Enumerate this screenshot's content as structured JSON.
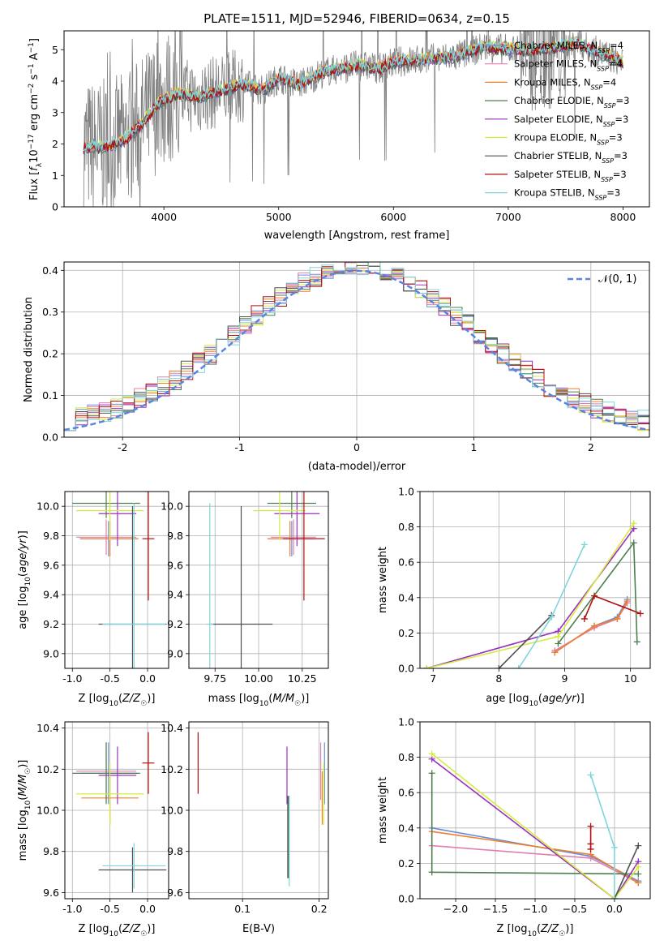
{
  "figure": {
    "title": "PLATE=1511, MJD=52946, FIBERID=0634, z=0.15"
  },
  "model_colors": {
    "Chabrier MILES": "#6a8fd6",
    "Salpeter MILES": "#e07fb0",
    "Kroupa MILES": "#ee7f2d",
    "Chabrier ELODIE": "#4f7f4f",
    "Salpeter ELODIE": "#9b2fbf",
    "Kroupa ELODIE": "#d4ec3c",
    "Chabrier STELIB": "#505050",
    "Salpeter STELIB": "#b01010",
    "Kroupa STELIB": "#7fd4dc",
    "data_spectrum": "#808080",
    "gaussian_curve": "#5b84e0"
  },
  "chart_data": [
    {
      "id": "spectrum",
      "type": "line",
      "title": "PLATE=1511, MJD=52946, FIBERID=0634, z=0.15",
      "xlabel": "wavelength [Angstrom, rest frame]",
      "ylabel": "Flux [f_λ 10^-17 erg cm^-2 s^-1 A^-1]",
      "xlim": [
        3130,
        8230
      ],
      "ylim": [
        0,
        5.6
      ],
      "xticks": [
        4000,
        5000,
        6000,
        7000,
        8000
      ],
      "yticks": [
        0,
        1,
        2,
        3,
        4,
        5
      ],
      "grid": false,
      "legend_position": "top-right",
      "legend": [
        {
          "label": "Chabrier MILES",
          "nssp": "4"
        },
        {
          "label": "Salpeter MILES",
          "nssp": "4"
        },
        {
          "label": "Kroupa MILES",
          "nssp": "4"
        },
        {
          "label": "Chabrier ELODIE",
          "nssp": "3"
        },
        {
          "label": "Salpeter ELODIE",
          "nssp": "3"
        },
        {
          "label": "Kroupa ELODIE",
          "nssp": "3"
        },
        {
          "label": "Chabrier STELIB",
          "nssp": "3"
        },
        {
          "label": "Salpeter STELIB",
          "nssp": "3"
        },
        {
          "label": "Kroupa STELIB",
          "nssp": "3"
        }
      ],
      "continuum_points": [
        [
          3300,
          1.9
        ],
        [
          3500,
          1.9
        ],
        [
          3650,
          2.1
        ],
        [
          3800,
          2.6
        ],
        [
          3950,
          3.3
        ],
        [
          4100,
          3.6
        ],
        [
          4300,
          3.5
        ],
        [
          4500,
          3.7
        ],
        [
          4700,
          3.9
        ],
        [
          4862,
          3.7
        ],
        [
          5000,
          4.1
        ],
        [
          5175,
          3.9
        ],
        [
          5400,
          4.3
        ],
        [
          5700,
          4.5
        ],
        [
          5890,
          4.4
        ],
        [
          6000,
          4.6
        ],
        [
          6300,
          4.7
        ],
        [
          6563,
          4.8
        ],
        [
          6800,
          5.1
        ],
        [
          7000,
          5.0
        ],
        [
          7300,
          5.0
        ],
        [
          7600,
          5.2
        ],
        [
          8000,
          4.6
        ]
      ]
    },
    {
      "id": "residuals",
      "type": "line",
      "xlabel": "(data-model)/error",
      "ylabel": "Normed distribution",
      "xlim": [
        -2.5,
        2.5
      ],
      "ylim": [
        0,
        0.42
      ],
      "xticks": [
        -2,
        -1,
        0,
        1,
        2
      ],
      "yticks": [
        0.0,
        0.1,
        0.2,
        0.3,
        0.4
      ],
      "grid": true,
      "legend_position": "top-right",
      "legend_label": "𝒩(0, 1)",
      "gaussian": {
        "mean": 0,
        "sigma": 1
      }
    },
    {
      "id": "age-vs-Z",
      "type": "scatter",
      "xlabel": "Z [log10(Z/Z☉)]",
      "ylabel": "age [log10(age/yr)]",
      "xlim": [
        -1.1,
        0.28
      ],
      "ylim": [
        8.9,
        10.1
      ],
      "xticks": [
        -1.0,
        -0.5,
        0.0
      ],
      "yticks": [
        9.0,
        9.2,
        9.4,
        9.6,
        9.8,
        10.0
      ],
      "grid": true,
      "points": [
        {
          "model": "Chabrier MILES",
          "x": -0.52,
          "xerr": 0.38,
          "y": 9.78,
          "yerr": 0.12
        },
        {
          "model": "Salpeter MILES",
          "x": -0.55,
          "xerr": 0.4,
          "y": 9.79,
          "yerr": 0.12
        },
        {
          "model": "Kroupa MILES",
          "x": -0.5,
          "xerr": 0.38,
          "y": 9.78,
          "yerr": 0.12
        },
        {
          "model": "Chabrier ELODIE",
          "x": -0.55,
          "xerr": 0.45,
          "y": 10.02,
          "yerr": 0.1
        },
        {
          "model": "Salpeter ELODIE",
          "x": -0.4,
          "xerr": 0.25,
          "y": 9.95,
          "yerr": 0.22
        },
        {
          "model": "Kroupa ELODIE",
          "x": -0.5,
          "xerr": 0.45,
          "y": 9.97,
          "yerr": 0.2
        },
        {
          "model": "Chabrier STELIB",
          "x": -0.2,
          "xerr": 0.45,
          "y": 9.2,
          "yerr": 0.8
        },
        {
          "model": "Salpeter STELIB",
          "x": 0.01,
          "xerr": 0.08,
          "y": 9.78,
          "yerr": 0.42
        },
        {
          "model": "Kroupa STELIB",
          "x": -0.18,
          "xerr": 0.42,
          "y": 9.2,
          "yerr": 0.82
        }
      ]
    },
    {
      "id": "age-vs-mass",
      "type": "scatter",
      "xlabel": "mass [log10(M/M☉)]",
      "ylabel": "",
      "xlim": [
        9.6,
        10.4
      ],
      "ylim": [
        8.9,
        10.1
      ],
      "xticks": [
        9.75,
        10.0,
        10.25
      ],
      "xticklabels": [
        "9.75",
        "10.00",
        "10.25"
      ],
      "yticks": [
        9.0,
        9.2,
        9.4,
        9.6,
        9.8,
        10.0
      ],
      "grid": true,
      "points": [
        {
          "model": "Chabrier MILES",
          "x": 10.19,
          "xerr": 0.13,
          "y": 9.78,
          "yerr": 0.12
        },
        {
          "model": "Salpeter MILES",
          "x": 10.2,
          "xerr": 0.13,
          "y": 9.79,
          "yerr": 0.12
        },
        {
          "model": "Kroupa MILES",
          "x": 10.18,
          "xerr": 0.13,
          "y": 9.78,
          "yerr": 0.12
        },
        {
          "model": "Chabrier ELODIE",
          "x": 10.19,
          "xerr": 0.14,
          "y": 10.02,
          "yerr": 0.1
        },
        {
          "model": "Salpeter ELODIE",
          "x": 10.22,
          "xerr": 0.13,
          "y": 9.95,
          "yerr": 0.22
        },
        {
          "model": "Kroupa ELODIE",
          "x": 10.12,
          "xerr": 0.15,
          "y": 9.97,
          "yerr": 0.2
        },
        {
          "model": "Chabrier STELIB",
          "x": 9.9,
          "xerr": 0.18,
          "y": 9.2,
          "yerr": 0.8
        },
        {
          "model": "Salpeter STELIB",
          "x": 10.26,
          "xerr": 0.12,
          "y": 9.78,
          "yerr": 0.42
        },
        {
          "model": "Kroupa STELIB",
          "x": 9.72,
          "xerr": 0.02,
          "y": 9.2,
          "yerr": 0.82
        }
      ]
    },
    {
      "id": "weight-vs-age",
      "type": "line",
      "xlabel": "age [log10(age/yr)]",
      "ylabel": "mass weight",
      "xlim": [
        6.8,
        10.3
      ],
      "ylim": [
        0,
        1.0
      ],
      "xticks": [
        7,
        8,
        9,
        10
      ],
      "yticks": [
        0.0,
        0.2,
        0.4,
        0.6,
        0.8,
        1.0
      ],
      "grid": true,
      "series": [
        {
          "model": "Chabrier MILES",
          "x": [
            8.85,
            9.45,
            9.8,
            9.95
          ],
          "y": [
            0.09,
            0.24,
            0.29,
            0.39
          ]
        },
        {
          "model": "Salpeter MILES",
          "x": [
            8.85,
            9.45,
            9.8,
            9.95
          ],
          "y": [
            0.1,
            0.23,
            0.28,
            0.37
          ]
        },
        {
          "model": "Kroupa MILES",
          "x": [
            8.85,
            9.45,
            9.8,
            9.95
          ],
          "y": [
            0.09,
            0.24,
            0.28,
            0.38
          ]
        },
        {
          "model": "Chabrier ELODIE",
          "x": [
            8.9,
            10.05,
            10.1
          ],
          "y": [
            0.14,
            0.71,
            0.15
          ]
        },
        {
          "model": "Salpeter ELODIE",
          "x": [
            6.9,
            8.9,
            10.05
          ],
          "y": [
            0.0,
            0.21,
            0.79
          ]
        },
        {
          "model": "Kroupa ELODIE",
          "x": [
            6.9,
            8.9,
            10.05
          ],
          "y": [
            0.0,
            0.18,
            0.82
          ]
        },
        {
          "model": "Chabrier STELIB",
          "x": [
            8.0,
            8.8
          ],
          "y": [
            0.0,
            0.3
          ]
        },
        {
          "model": "Salpeter STELIB",
          "x": [
            9.3,
            9.45,
            10.15
          ],
          "y": [
            0.28,
            0.41,
            0.31
          ]
        },
        {
          "model": "Kroupa STELIB",
          "x": [
            8.3,
            8.8,
            9.3
          ],
          "y": [
            0.0,
            0.29,
            0.7
          ]
        }
      ]
    },
    {
      "id": "mass-vs-Z",
      "type": "scatter",
      "xlabel": "Z [log10(Z/Z☉)]",
      "ylabel": "mass [log10(M/M☉)]",
      "xlim": [
        -1.1,
        0.28
      ],
      "ylim": [
        9.57,
        10.43
      ],
      "xticks": [
        -1.0,
        -0.5,
        0.0
      ],
      "yticks": [
        9.6,
        9.8,
        10.0,
        10.2,
        10.4
      ],
      "grid": true,
      "points": [
        {
          "model": "Chabrier MILES",
          "x": -0.52,
          "xerr": 0.38,
          "y": 10.18,
          "yerr": 0.15
        },
        {
          "model": "Salpeter MILES",
          "x": -0.55,
          "xerr": 0.4,
          "y": 10.19,
          "yerr": 0.14
        },
        {
          "model": "Kroupa MILES",
          "x": -0.5,
          "xerr": 0.38,
          "y": 10.06,
          "yerr": 0.13
        },
        {
          "model": "Chabrier ELODIE",
          "x": -0.55,
          "xerr": 0.45,
          "y": 10.18,
          "yerr": 0.15
        },
        {
          "model": "Salpeter ELODIE",
          "x": -0.4,
          "xerr": 0.25,
          "y": 10.17,
          "yerr": 0.14
        },
        {
          "model": "Kroupa ELODIE",
          "x": -0.5,
          "xerr": 0.45,
          "y": 10.08,
          "yerr": 0.15
        },
        {
          "model": "Chabrier STELIB",
          "x": -0.2,
          "xerr": 0.45,
          "y": 9.71,
          "yerr": 0.11
        },
        {
          "model": "Salpeter STELIB",
          "x": 0.01,
          "xerr": 0.08,
          "y": 10.23,
          "yerr": 0.15
        },
        {
          "model": "Kroupa STELIB",
          "x": -0.18,
          "xerr": 0.42,
          "y": 9.73,
          "yerr": 0.11
        }
      ]
    },
    {
      "id": "mass-vs-ebv",
      "type": "scatter",
      "xlabel": "E(B-V)",
      "ylabel": "",
      "xlim": [
        0.03,
        0.212
      ],
      "ylim": [
        9.57,
        10.43
      ],
      "xticks": [
        0.1,
        0.2
      ],
      "yticks": [
        9.6,
        9.8,
        10.0,
        10.2,
        10.4
      ],
      "grid": true,
      "points": [
        {
          "model": "Chabrier MILES",
          "x": 0.207,
          "y": 10.18,
          "yerr": 0.15
        },
        {
          "model": "Salpeter MILES",
          "x": 0.202,
          "y": 10.19,
          "yerr": 0.14
        },
        {
          "model": "Kroupa MILES",
          "x": 0.204,
          "y": 10.06,
          "yerr": 0.13
        },
        {
          "model": "Chabrier ELODIE",
          "x": 0.16,
          "y": 9.87,
          "yerr": 0.2
        },
        {
          "model": "Salpeter ELODIE",
          "x": 0.158,
          "y": 10.17,
          "yerr": 0.14
        },
        {
          "model": "Kroupa ELODIE",
          "x": 0.206,
          "y": 10.08,
          "yerr": 0.15
        },
        {
          "model": "Chabrier STELIB",
          "x": 0.159,
          "y": 9.87,
          "yerr": 0.2
        },
        {
          "model": "Salpeter STELIB",
          "x": 0.042,
          "y": 10.23,
          "yerr": 0.15
        },
        {
          "model": "Kroupa STELIB",
          "x": 0.161,
          "y": 9.85,
          "yerr": 0.22
        }
      ]
    },
    {
      "id": "weight-vs-Z",
      "type": "line",
      "xlabel": "Z [log10(Z/Z☉)]",
      "ylabel": "mass weight",
      "xlim": [
        -2.45,
        0.45
      ],
      "ylim": [
        0,
        1.0
      ],
      "xticks": [
        -2.0,
        -1.5,
        -1.0,
        -0.5,
        0.0
      ],
      "yticks": [
        0.0,
        0.2,
        0.4,
        0.6,
        0.8,
        1.0
      ],
      "grid": true,
      "series": [
        {
          "model": "Chabrier MILES",
          "x": [
            -2.3,
            -0.3,
            0.3
          ],
          "y": [
            0.4,
            0.24,
            0.1
          ]
        },
        {
          "model": "Salpeter MILES",
          "x": [
            -2.3,
            -0.3,
            0.3
          ],
          "y": [
            0.3,
            0.23,
            0.09
          ]
        },
        {
          "model": "Kroupa MILES",
          "x": [
            -2.3,
            -0.3,
            0.3
          ],
          "y": [
            0.38,
            0.25,
            0.09
          ]
        },
        {
          "model": "Chabrier ELODIE",
          "x": [
            -2.3,
            -2.3,
            0.3
          ],
          "y": [
            0.71,
            0.15,
            0.14
          ]
        },
        {
          "model": "Salpeter ELODIE",
          "x": [
            -2.3,
            0.0,
            0.3
          ],
          "y": [
            0.79,
            0.0,
            0.21
          ]
        },
        {
          "model": "Kroupa ELODIE",
          "x": [
            -2.3,
            0.0,
            0.3
          ],
          "y": [
            0.82,
            0.0,
            0.18
          ]
        },
        {
          "model": "Chabrier STELIB",
          "x": [
            0.0,
            0.3
          ],
          "y": [
            0.0,
            0.3
          ]
        },
        {
          "model": "Salpeter STELIB",
          "x": [
            -0.3,
            -0.3,
            -0.3
          ],
          "y": [
            0.41,
            0.31,
            0.28
          ]
        },
        {
          "model": "Kroupa STELIB",
          "x": [
            -0.3,
            0.0,
            0.0
          ],
          "y": [
            0.7,
            0.29,
            0.0
          ]
        }
      ]
    }
  ]
}
